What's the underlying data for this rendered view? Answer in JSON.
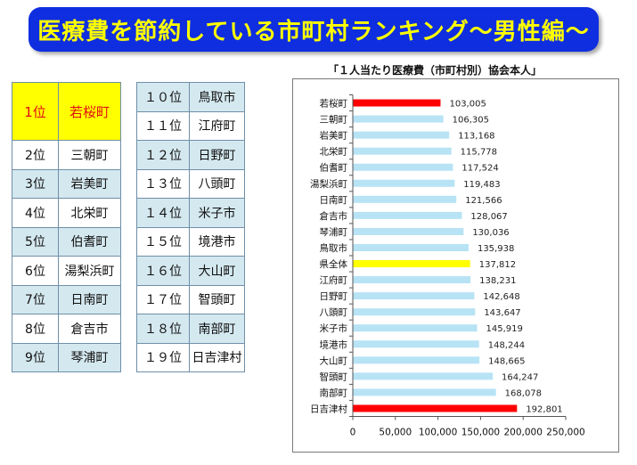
{
  "banner": {
    "title": "医療費を節約している市町村ランキング〜男性編〜"
  },
  "ranking": {
    "left": [
      {
        "rank": "1位",
        "town": "若桜町"
      },
      {
        "rank": "2位",
        "town": "三朝町"
      },
      {
        "rank": "3位",
        "town": "岩美町"
      },
      {
        "rank": "4位",
        "town": "北栄町"
      },
      {
        "rank": "5位",
        "town": "伯耆町"
      },
      {
        "rank": "6位",
        "town": "湯梨浜町"
      },
      {
        "rank": "7位",
        "town": "日南町"
      },
      {
        "rank": "8位",
        "town": "倉吉市"
      },
      {
        "rank": "9位",
        "town": "琴浦町"
      }
    ],
    "right": [
      {
        "rank": "１０位",
        "town": "鳥取市"
      },
      {
        "rank": "１１位",
        "town": "江府町"
      },
      {
        "rank": "１２位",
        "town": "日野町"
      },
      {
        "rank": "１３位",
        "town": "八頭町"
      },
      {
        "rank": "１４位",
        "town": "米子市"
      },
      {
        "rank": "１５位",
        "town": "境港市"
      },
      {
        "rank": "１６位",
        "town": "大山町"
      },
      {
        "rank": "１７位",
        "town": "智頭町"
      },
      {
        "rank": "１８位",
        "town": "南部町"
      },
      {
        "rank": "１９位",
        "town": "日吉津村"
      }
    ]
  },
  "chart_data": {
    "type": "bar",
    "orientation": "horizontal",
    "title": "「１人当たり医療費（市町村別）協会本人」",
    "categories": [
      "若桜町",
      "三朝町",
      "岩美町",
      "北栄町",
      "伯耆町",
      "湯梨浜町",
      "日南町",
      "倉吉市",
      "琴浦町",
      "鳥取市",
      "県全体",
      "江府町",
      "日野町",
      "八頭町",
      "米子市",
      "境港市",
      "大山町",
      "智頭町",
      "南部町",
      "日吉津村"
    ],
    "values": [
      103005,
      106305,
      113168,
      115778,
      117524,
      119483,
      121566,
      128067,
      130036,
      135938,
      137812,
      138231,
      142648,
      143647,
      145919,
      148244,
      148665,
      164247,
      168078,
      192801
    ],
    "value_labels": [
      "103,005",
      "106,305",
      "113,168",
      "115,778",
      "117,524",
      "119,483",
      "121,566",
      "128,067",
      "130,036",
      "135,938",
      "137,812",
      "138,231",
      "142,648",
      "143,647",
      "145,919",
      "148,244",
      "148,665",
      "164,247",
      "168,078",
      "192,801"
    ],
    "bar_colors": [
      "#ff0000",
      "#b7e3f5",
      "#b7e3f5",
      "#b7e3f5",
      "#b7e3f5",
      "#b7e3f5",
      "#b7e3f5",
      "#b7e3f5",
      "#b7e3f5",
      "#b7e3f5",
      "#ffff00",
      "#b7e3f5",
      "#b7e3f5",
      "#b7e3f5",
      "#b7e3f5",
      "#b7e3f5",
      "#b7e3f5",
      "#b7e3f5",
      "#b7e3f5",
      "#ff0000"
    ],
    "xlim": [
      0,
      250000
    ],
    "xticks": [
      0,
      50000,
      100000,
      150000,
      200000,
      250000
    ],
    "xtick_labels": [
      "0",
      "50,000",
      "100,000",
      "150,000",
      "200,000",
      "250,000"
    ],
    "grid": false,
    "legend": "none"
  }
}
